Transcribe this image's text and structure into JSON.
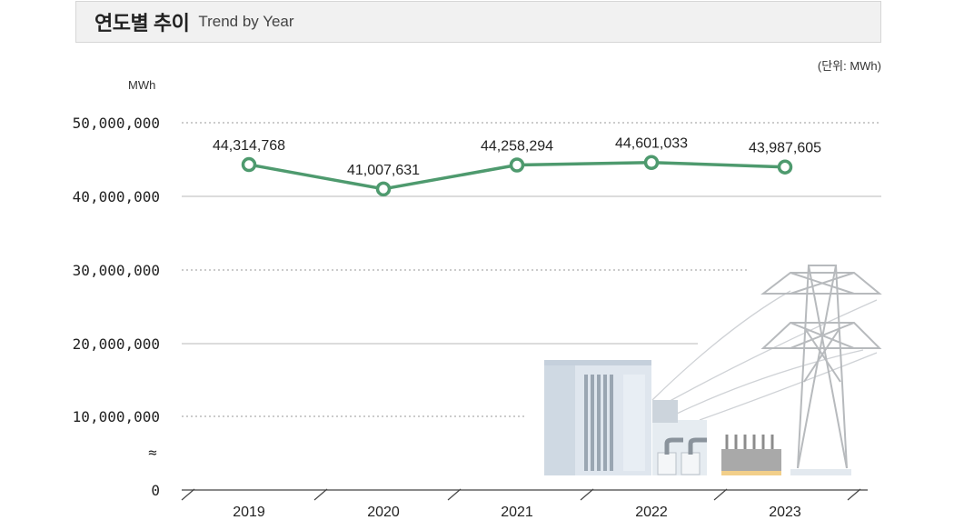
{
  "header": {
    "title_ko": "연도별 추이",
    "title_en": "Trend by Year"
  },
  "unit_note": "(단위: MWh)",
  "chart_data": {
    "type": "line",
    "title": "연도별 추이",
    "ylabel": "MWh",
    "categories": [
      "2019",
      "2020",
      "2021",
      "2022",
      "2023"
    ],
    "series": [
      {
        "values": [
          44314768,
          41007631,
          44258294,
          44601033,
          43987605
        ],
        "labels": [
          "44,314,768",
          "41,007,631",
          "44,258,294",
          "44,601,033",
          "43,987,605"
        ],
        "color": "#4e9a6e"
      }
    ],
    "yticks": [
      {
        "value": 0,
        "label": "0"
      },
      {
        "value": 10000000,
        "label": "10,000,000"
      },
      {
        "value": 20000000,
        "label": "20,000,000"
      },
      {
        "value": 30000000,
        "label": "30,000,000"
      },
      {
        "value": 40000000,
        "label": "40,000,000"
      },
      {
        "value": 50000000,
        "label": "50,000,000"
      }
    ],
    "axis_break_symbol": "≈",
    "ylim": [
      0,
      50000000
    ],
    "grid": true
  },
  "colors": {
    "line": "#4e9a6e",
    "grid_solid": "#b8b8b8",
    "grid_dotted": "#9a9a9a"
  },
  "illustration": "power-substation-and-transmission-tower"
}
